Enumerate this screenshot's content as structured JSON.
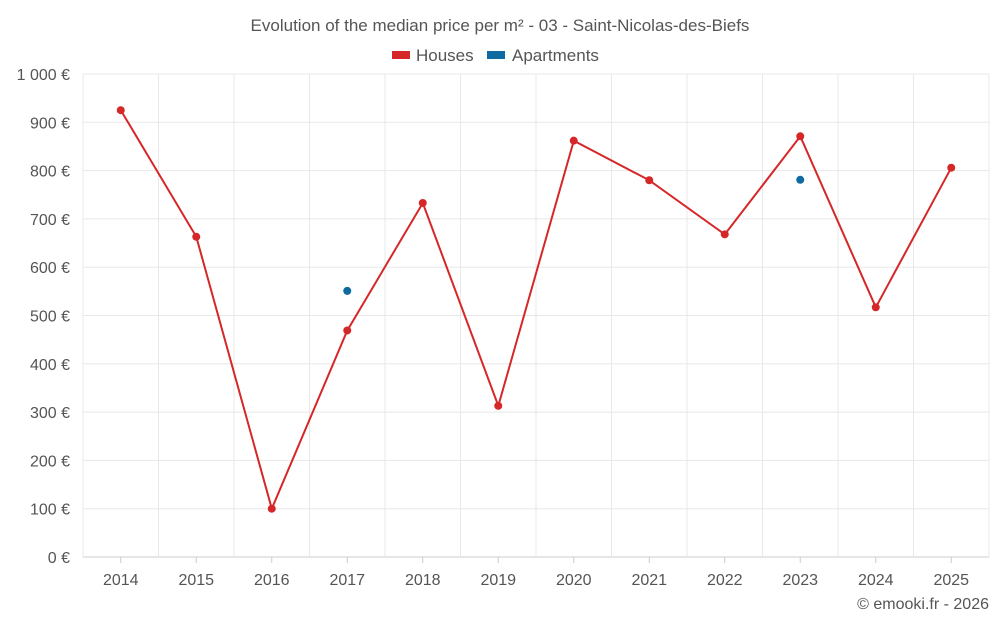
{
  "chart_data": {
    "type": "line",
    "title": "Evolution of the median price per m² - 03 - Saint-Nicolas-des-Biefs",
    "categories": [
      "2014",
      "2015",
      "2016",
      "2017",
      "2018",
      "2019",
      "2020",
      "2021",
      "2022",
      "2023",
      "2024",
      "2025"
    ],
    "y_ticks": [
      "0 €",
      "100 €",
      "200 €",
      "300 €",
      "400 €",
      "500 €",
      "600 €",
      "700 €",
      "800 €",
      "900 €",
      "1 000 €"
    ],
    "ylim": [
      0,
      1000
    ],
    "series": [
      {
        "name": "Houses",
        "color": "#d62728",
        "values": [
          925,
          663,
          100,
          469,
          733,
          313,
          862,
          780,
          668,
          871,
          517,
          806
        ]
      },
      {
        "name": "Apartments",
        "color": "#0e6aa0",
        "values": [
          null,
          null,
          null,
          551,
          null,
          null,
          null,
          null,
          null,
          781,
          null,
          null
        ]
      }
    ],
    "legend_position": "top-center",
    "grid": true
  },
  "credit": "© emooki.fr - 2026"
}
